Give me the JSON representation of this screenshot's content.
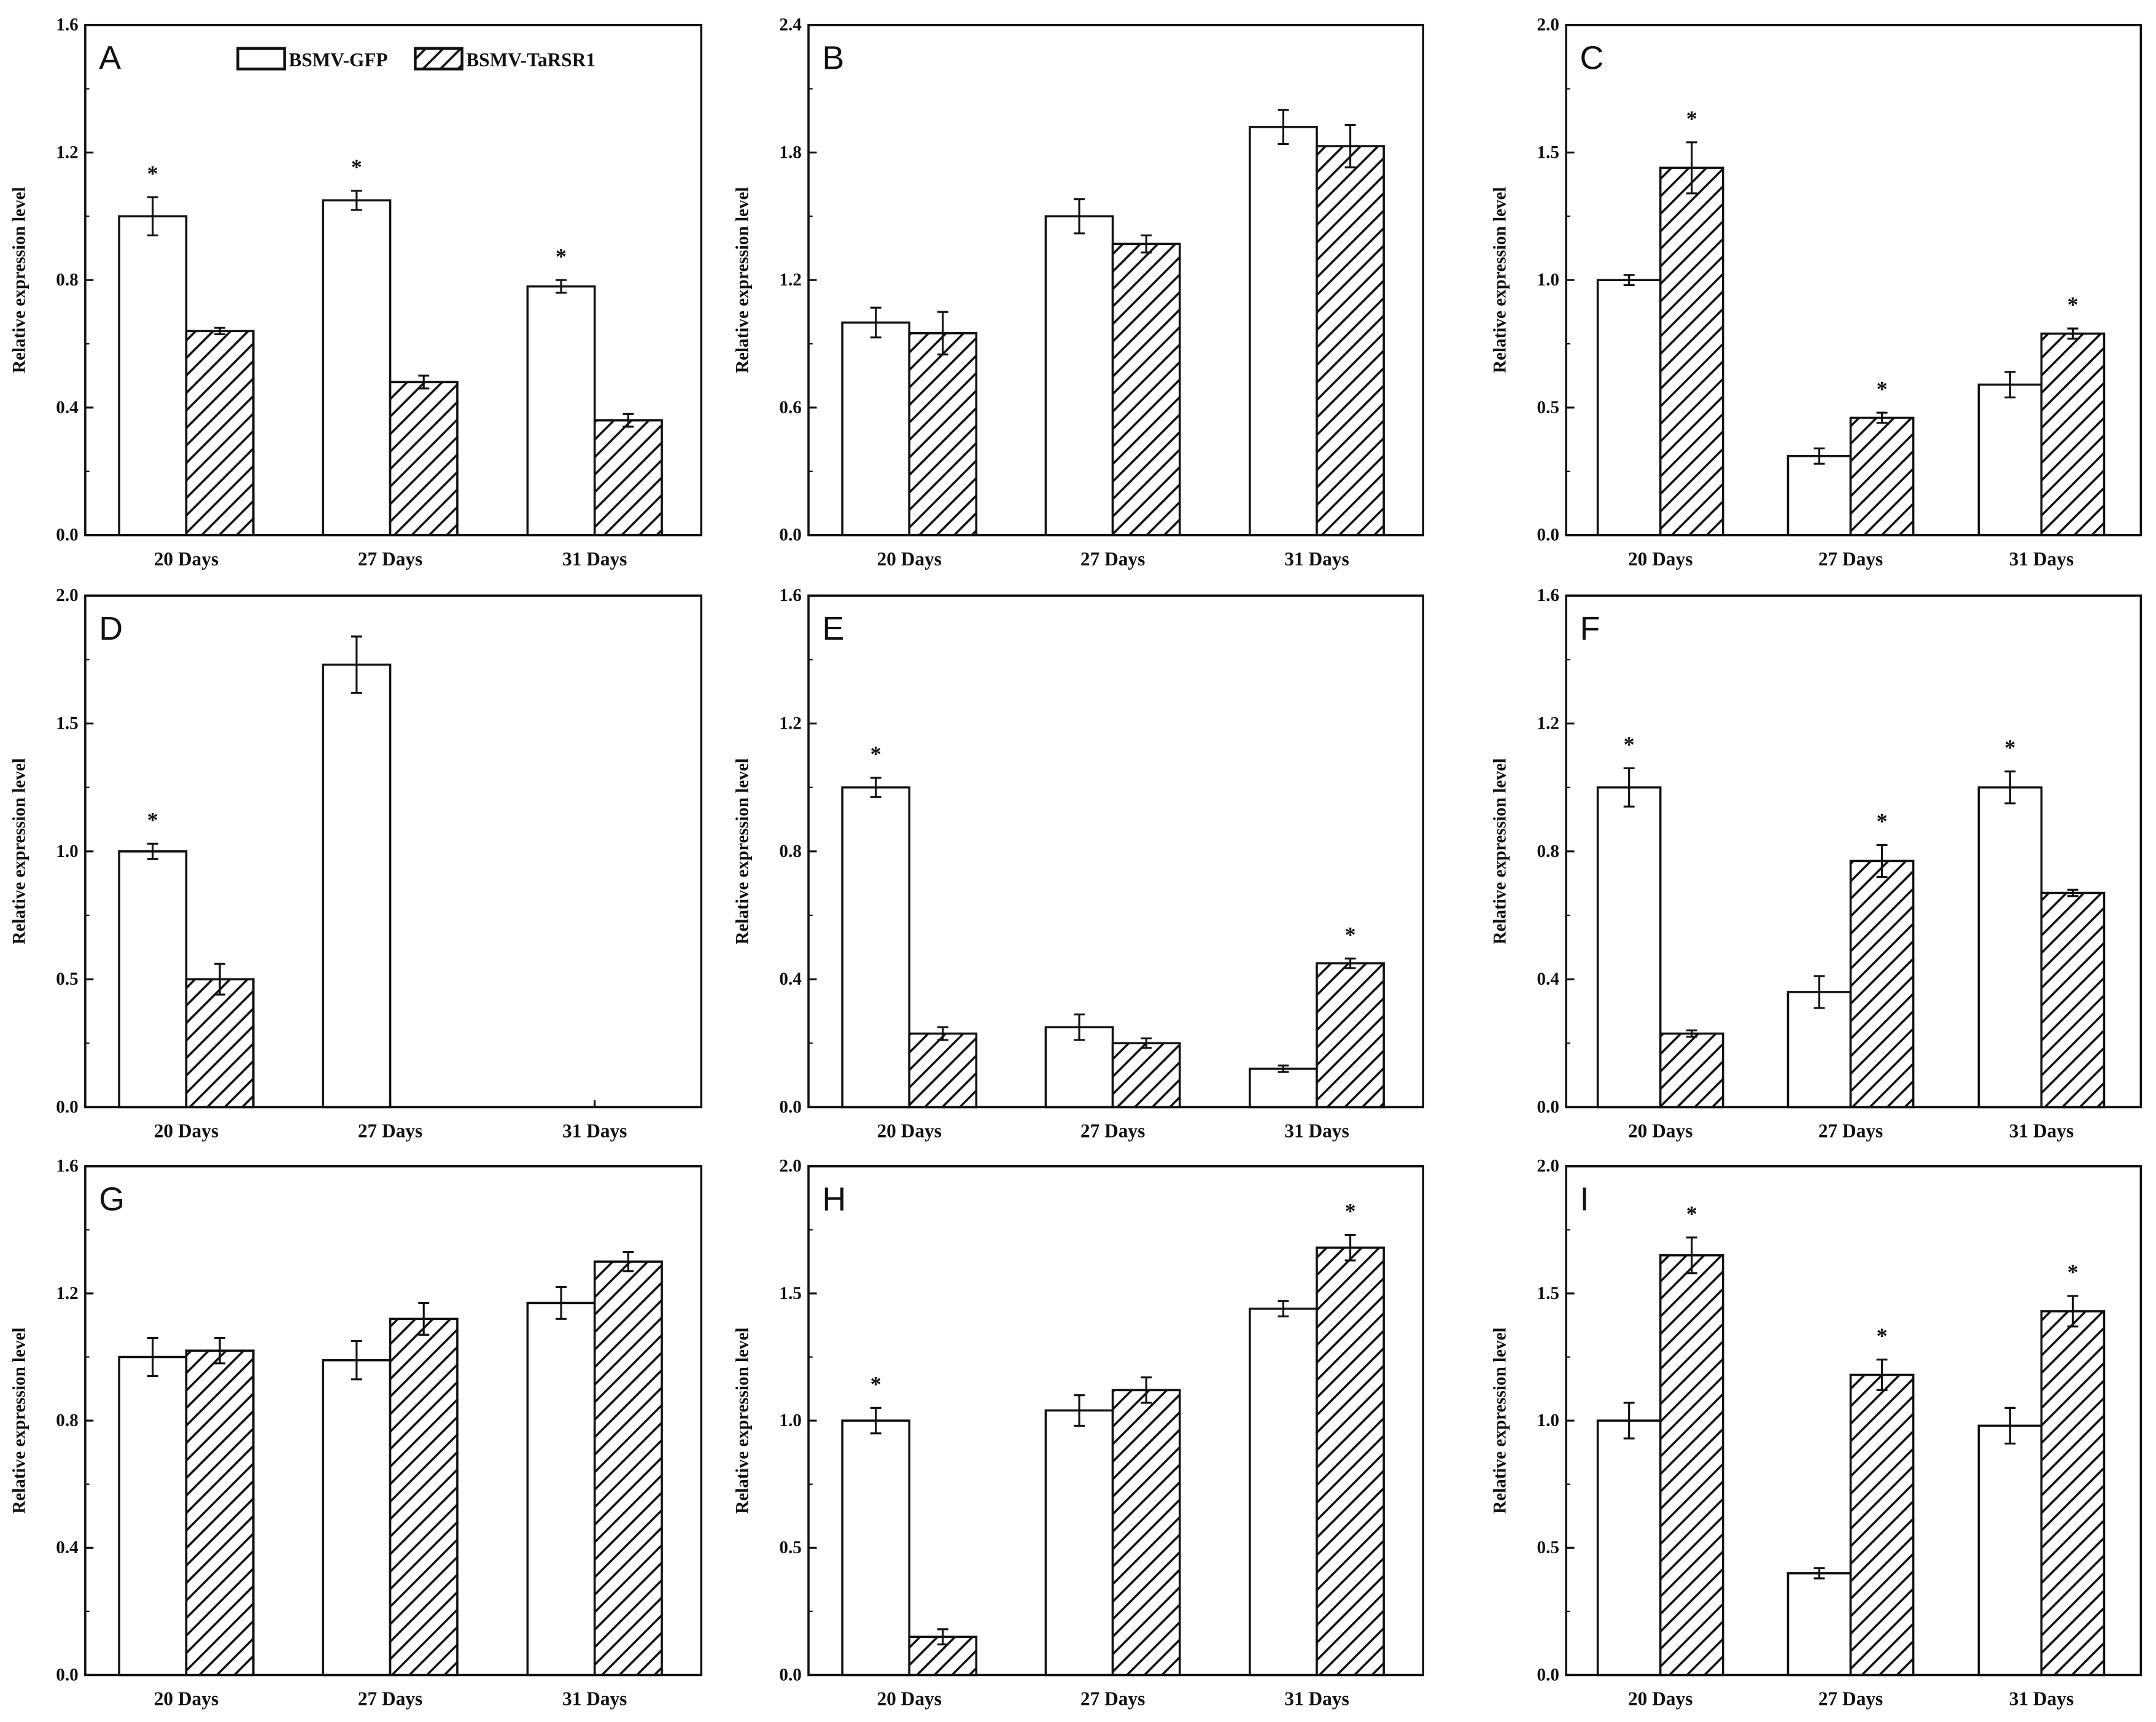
{
  "chart_data": [
    {
      "type": "bar",
      "panel": "A",
      "ylabel": "Relative expression level",
      "ylim": [
        0,
        1.6
      ],
      "yticks": [
        "0.0",
        "0.4",
        "0.8",
        "1.2",
        "1.6"
      ],
      "categories": [
        "20 Days",
        "27 Days",
        "31 Days"
      ],
      "series": [
        {
          "name": "BSMV-GFP",
          "values": [
            1.0,
            1.05,
            0.78
          ],
          "errors": [
            0.06,
            0.03,
            0.02
          ],
          "significant": [
            true,
            true,
            true
          ]
        },
        {
          "name": "BSMV-TaRSR1",
          "values": [
            0.64,
            0.48,
            0.36
          ],
          "errors": [
            0.01,
            0.02,
            0.02
          ],
          "significant": [
            false,
            false,
            false
          ]
        }
      ]
    },
    {
      "type": "bar",
      "panel": "B",
      "ylabel": "Relative expression level",
      "ylim": [
        0,
        2.4
      ],
      "yticks": [
        "0.0",
        "0.6",
        "1.2",
        "1.8",
        "2.4"
      ],
      "categories": [
        "20 Days",
        "27 Days",
        "31 Days"
      ],
      "series": [
        {
          "name": "BSMV-GFP",
          "values": [
            1.0,
            1.5,
            1.92
          ],
          "errors": [
            0.07,
            0.08,
            0.08
          ],
          "significant": [
            false,
            false,
            false
          ]
        },
        {
          "name": "BSMV-TaRSR1",
          "values": [
            0.95,
            1.37,
            1.83
          ],
          "errors": [
            0.1,
            0.04,
            0.1
          ],
          "significant": [
            false,
            false,
            false
          ]
        }
      ]
    },
    {
      "type": "bar",
      "panel": "C",
      "ylabel": "Relative expression level",
      "ylim": [
        0,
        2.0
      ],
      "yticks": [
        "0.0",
        "0.5",
        "1.0",
        "1.5",
        "2.0"
      ],
      "categories": [
        "20 Days",
        "27 Days",
        "31 Days"
      ],
      "series": [
        {
          "name": "BSMV-GFP",
          "values": [
            1.0,
            0.31,
            0.59
          ],
          "errors": [
            0.02,
            0.03,
            0.05
          ],
          "significant": [
            false,
            false,
            false
          ]
        },
        {
          "name": "BSMV-TaRSR1",
          "values": [
            1.44,
            0.46,
            0.79
          ],
          "errors": [
            0.1,
            0.02,
            0.02
          ],
          "significant": [
            true,
            true,
            true
          ]
        }
      ]
    },
    {
      "type": "bar",
      "panel": "D",
      "ylabel": "Relative expression level",
      "ylim": [
        0,
        2.0
      ],
      "yticks": [
        "0.0",
        "0.5",
        "1.0",
        "1.5",
        "2.0"
      ],
      "categories": [
        "20 Days",
        "27 Days",
        "31 Days"
      ],
      "series": [
        {
          "name": "BSMV-GFP",
          "values": [
            1.0,
            1.73,
            null
          ],
          "errors": [
            0.03,
            0.11,
            null
          ],
          "significant": [
            true,
            false,
            false
          ]
        },
        {
          "name": "BSMV-TaRSR1",
          "values": [
            0.5,
            null,
            null
          ],
          "errors": [
            0.06,
            null,
            null
          ],
          "significant": [
            false,
            false,
            false
          ]
        }
      ]
    },
    {
      "type": "bar",
      "panel": "E",
      "ylabel": "Relative expression level",
      "ylim": [
        0,
        1.6
      ],
      "yticks": [
        "0.0",
        "0.4",
        "0.8",
        "1.2",
        "1.6"
      ],
      "categories": [
        "20 Days",
        "27 Days",
        "31 Days"
      ],
      "series": [
        {
          "name": "BSMV-GFP",
          "values": [
            1.0,
            0.25,
            0.12
          ],
          "errors": [
            0.03,
            0.04,
            0.01
          ],
          "significant": [
            true,
            false,
            false
          ]
        },
        {
          "name": "BSMV-TaRSR1",
          "values": [
            0.23,
            0.2,
            0.45
          ],
          "errors": [
            0.02,
            0.015,
            0.015
          ],
          "significant": [
            false,
            false,
            true
          ]
        }
      ]
    },
    {
      "type": "bar",
      "panel": "F",
      "ylabel": "Relative expression level",
      "ylim": [
        0,
        1.6
      ],
      "yticks": [
        "0.0",
        "0.4",
        "0.8",
        "1.2",
        "1.6"
      ],
      "categories": [
        "20 Days",
        "27 Days",
        "31 Days"
      ],
      "series": [
        {
          "name": "BSMV-GFP",
          "values": [
            1.0,
            0.36,
            1.0
          ],
          "errors": [
            0.06,
            0.05,
            0.05
          ],
          "significant": [
            true,
            false,
            true
          ]
        },
        {
          "name": "BSMV-TaRSR1",
          "values": [
            0.23,
            0.77,
            0.67
          ],
          "errors": [
            0.01,
            0.05,
            0.01
          ],
          "significant": [
            false,
            true,
            false
          ]
        }
      ]
    },
    {
      "type": "bar",
      "panel": "G",
      "ylabel": "Relative expression level",
      "ylim": [
        0,
        1.6
      ],
      "yticks": [
        "0.0",
        "0.4",
        "0.8",
        "1.2",
        "1.6"
      ],
      "categories": [
        "20 Days",
        "27 Days",
        "31 Days"
      ],
      "series": [
        {
          "name": "BSMV-GFP",
          "values": [
            1.0,
            0.99,
            1.17
          ],
          "errors": [
            0.06,
            0.06,
            0.05
          ],
          "significant": [
            false,
            false,
            false
          ]
        },
        {
          "name": "BSMV-TaRSR1",
          "values": [
            1.02,
            1.12,
            1.3
          ],
          "errors": [
            0.04,
            0.05,
            0.03
          ],
          "significant": [
            false,
            false,
            false
          ]
        }
      ]
    },
    {
      "type": "bar",
      "panel": "H",
      "ylabel": "Relative expression level",
      "ylim": [
        0,
        2.0
      ],
      "yticks": [
        "0.0",
        "0.5",
        "1.0",
        "1.5",
        "2.0"
      ],
      "categories": [
        "20 Days",
        "27 Days",
        "31 Days"
      ],
      "series": [
        {
          "name": "BSMV-GFP",
          "values": [
            1.0,
            1.04,
            1.44
          ],
          "errors": [
            0.05,
            0.06,
            0.03
          ],
          "significant": [
            true,
            false,
            false
          ]
        },
        {
          "name": "BSMV-TaRSR1",
          "values": [
            0.15,
            1.12,
            1.68
          ],
          "errors": [
            0.03,
            0.05,
            0.05
          ],
          "significant": [
            false,
            false,
            true
          ]
        }
      ]
    },
    {
      "type": "bar",
      "panel": "I",
      "ylabel": "Relative expression level",
      "ylim": [
        0,
        2.0
      ],
      "yticks": [
        "0.0",
        "0.5",
        "1.0",
        "1.5",
        "2.0"
      ],
      "categories": [
        "20 Days",
        "27 Days",
        "31 Days"
      ],
      "series": [
        {
          "name": "BSMV-GFP",
          "values": [
            1.0,
            0.4,
            0.98
          ],
          "errors": [
            0.07,
            0.02,
            0.07
          ],
          "significant": [
            false,
            false,
            false
          ]
        },
        {
          "name": "BSMV-TaRSR1",
          "values": [
            1.65,
            1.18,
            1.43
          ],
          "errors": [
            0.07,
            0.06,
            0.06
          ],
          "significant": [
            true,
            true,
            true
          ]
        }
      ]
    }
  ],
  "legend": {
    "items": [
      "BSMV-GFP",
      "BSMV-TaRSR1"
    ],
    "placement": "top (panel A)"
  },
  "significance_marker": "*",
  "colors": {
    "axis": "#111111",
    "bar_fill": "#ffffff"
  }
}
